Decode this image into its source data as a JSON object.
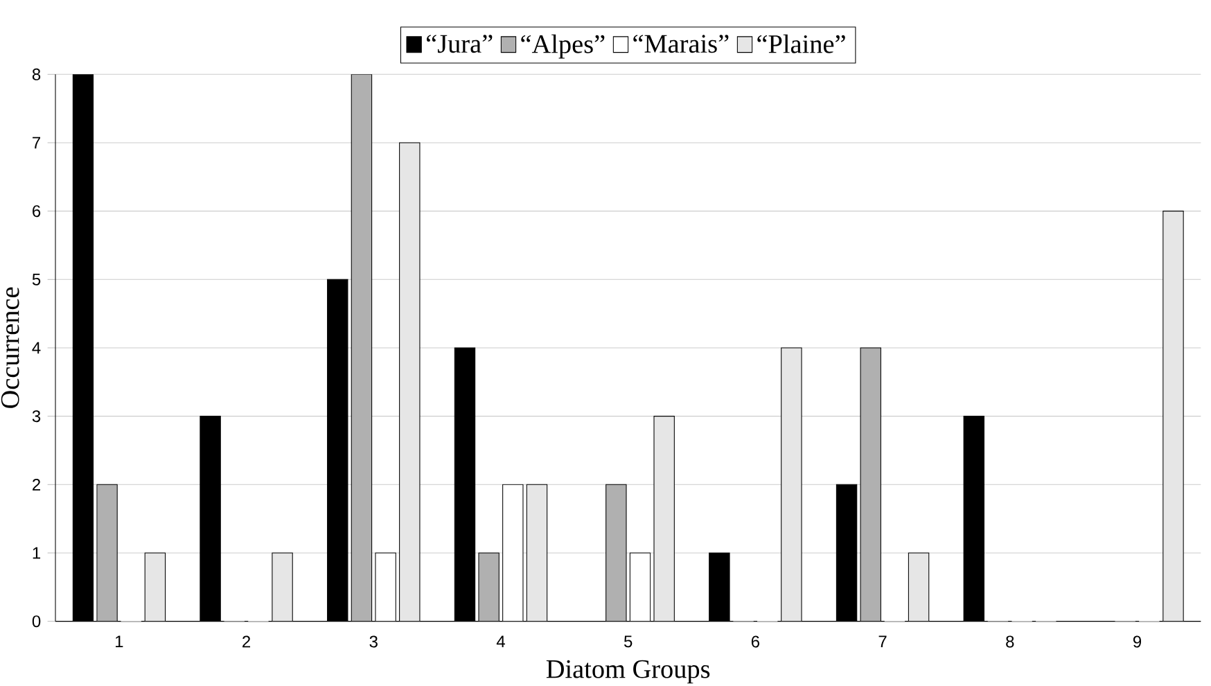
{
  "chart_data": {
    "type": "bar",
    "xlabel": "Diatom Groups",
    "ylabel": "Occurrence",
    "categories": [
      "1",
      "2",
      "3",
      "4",
      "5",
      "6",
      "7",
      "8",
      "9"
    ],
    "series": [
      {
        "name": "“Jura”",
        "color": "#000000",
        "values": [
          8,
          3,
          5,
          4,
          0,
          1,
          2,
          3,
          0
        ]
      },
      {
        "name": "“Alpes”",
        "color": "#b0b0b0",
        "values": [
          2,
          0,
          8,
          1,
          2,
          0,
          4,
          0,
          0
        ]
      },
      {
        "name": "“Marais”",
        "color": "#ffffff",
        "values": [
          0,
          0,
          1,
          2,
          1,
          0,
          0,
          0,
          0
        ]
      },
      {
        "name": "“Plaine”",
        "color": "#e6e6e6",
        "values": [
          1,
          1,
          7,
          2,
          3,
          4,
          1,
          0,
          6
        ]
      }
    ],
    "ylim": [
      0,
      8
    ],
    "yticks": [
      0,
      1,
      2,
      3,
      4,
      5,
      6,
      7,
      8
    ],
    "grid": "y",
    "legend": "top"
  }
}
